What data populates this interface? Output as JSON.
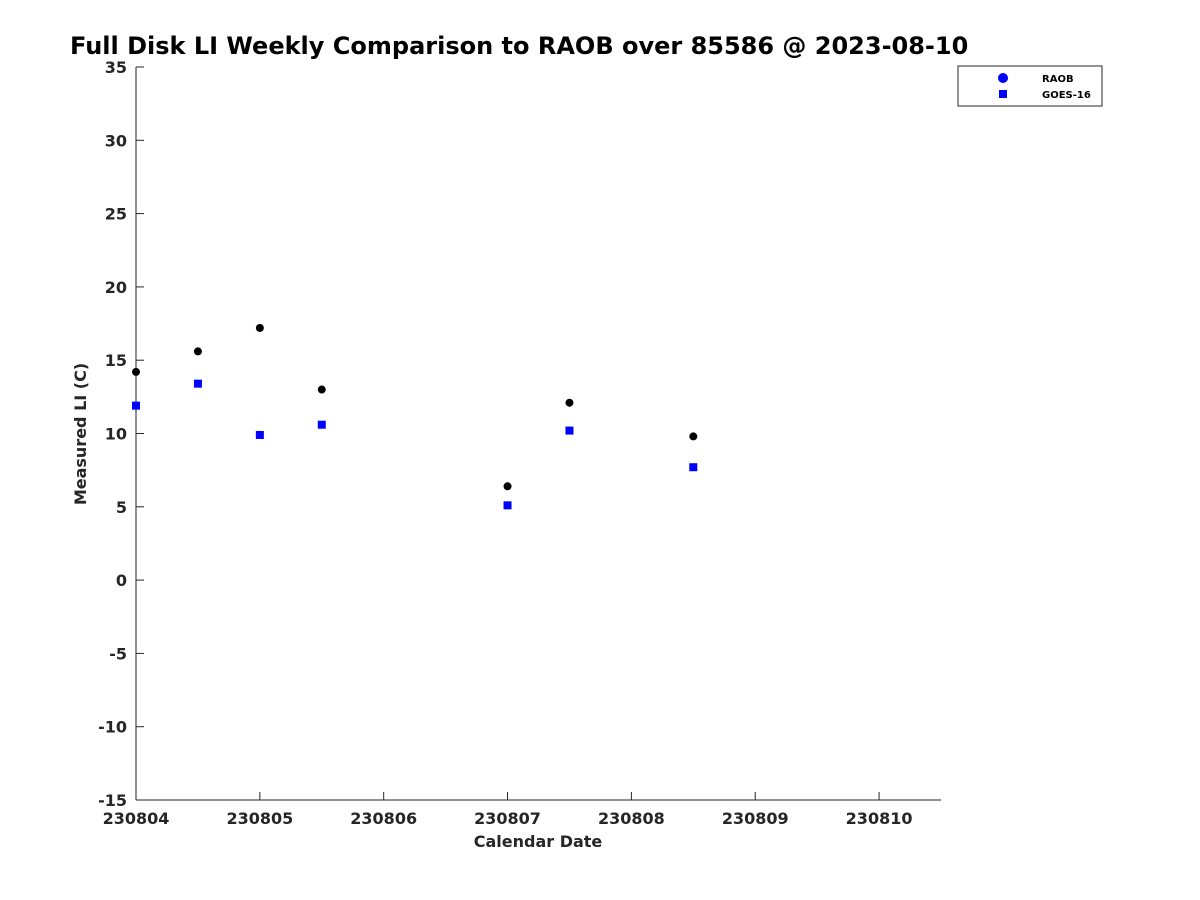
{
  "chart_data": {
    "type": "scatter",
    "title": "Full Disk LI Weekly Comparison to RAOB over 85586 @ 2023-08-10",
    "xlabel": "Calendar Date",
    "ylabel": "Measured LI (C)",
    "xlim": [
      "2023-08-04",
      "2023-08-10 12:00"
    ],
    "ylim": [
      -15,
      35
    ],
    "x_ticks": [
      {
        "value": "2023-08-04",
        "label": "230804"
      },
      {
        "value": "2023-08-05",
        "label": "230805"
      },
      {
        "value": "2023-08-06",
        "label": "230806"
      },
      {
        "value": "2023-08-07",
        "label": "230807"
      },
      {
        "value": "2023-08-08",
        "label": "230808"
      },
      {
        "value": "2023-08-09",
        "label": "230809"
      },
      {
        "value": "2023-08-10",
        "label": "230810"
      }
    ],
    "y_ticks": [
      35,
      30,
      25,
      20,
      15,
      10,
      5,
      0,
      -5,
      -10,
      -15
    ],
    "grid": false,
    "legend_position": "top-right",
    "series": [
      {
        "name": "RAOB",
        "marker": "circle",
        "color": "#000000",
        "legend_color": "#0000ff",
        "points": [
          {
            "x": "2023-08-04 00:00",
            "y": 14.2
          },
          {
            "x": "2023-08-04 12:00",
            "y": 15.6
          },
          {
            "x": "2023-08-05 00:00",
            "y": 17.2
          },
          {
            "x": "2023-08-05 12:00",
            "y": 13.0
          },
          {
            "x": "2023-08-07 00:00",
            "y": 6.4
          },
          {
            "x": "2023-08-07 12:00",
            "y": 12.1
          },
          {
            "x": "2023-08-08 12:00",
            "y": 9.8
          }
        ]
      },
      {
        "name": "GOES-16",
        "marker": "square",
        "color": "#0000ff",
        "legend_color": "#0000ff",
        "points": [
          {
            "x": "2023-08-04 00:00",
            "y": 11.9
          },
          {
            "x": "2023-08-04 12:00",
            "y": 13.4
          },
          {
            "x": "2023-08-05 00:00",
            "y": 9.9
          },
          {
            "x": "2023-08-05 12:00",
            "y": 10.6
          },
          {
            "x": "2023-08-07 00:00",
            "y": 5.1
          },
          {
            "x": "2023-08-07 12:00",
            "y": 10.2
          },
          {
            "x": "2023-08-08 12:00",
            "y": 7.7
          }
        ]
      }
    ]
  }
}
